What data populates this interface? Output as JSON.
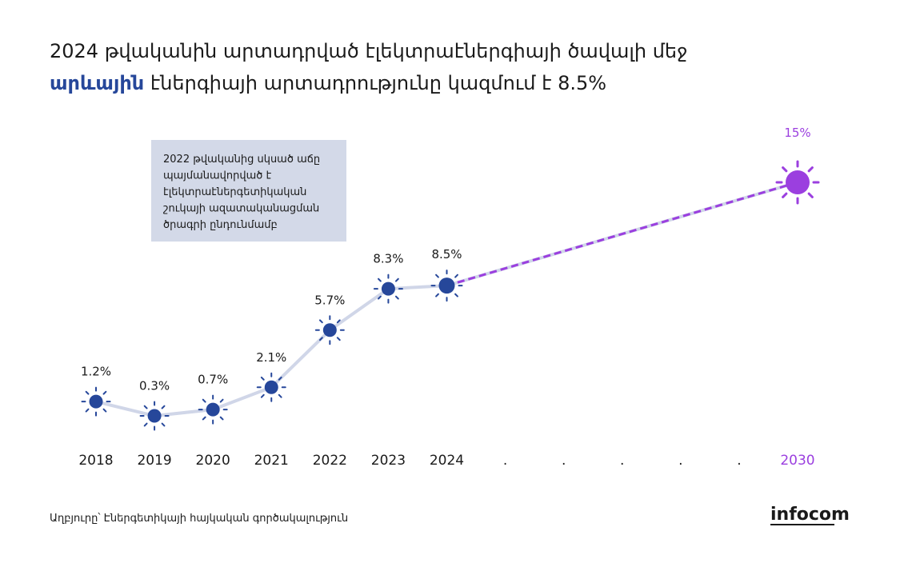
{
  "chart_data": {
    "type": "line",
    "title_parts": [
      "2024 թվականին արտադրված էլեկտրաէներգիայի ծավալի մեջ",
      "արևային",
      " էներգիայի արտադրությունը կազմում է 8.5%"
    ],
    "annotation": [
      "2022 թվականից սկսած աճը",
      "պայմանավորված է",
      "էլեկտրաէներգետիկական",
      "շուկայի ազատականացման",
      "ծրագրի ընդունմամբ"
    ],
    "categories": [
      "2018",
      "2019",
      "2020",
      "2021",
      "2022",
      "2023",
      "2024",
      ".",
      ".",
      ".",
      ".",
      ".",
      "2030"
    ],
    "values": [
      1.2,
      0.3,
      0.7,
      2.1,
      5.7,
      8.3,
      8.5,
      null,
      null,
      null,
      null,
      null,
      15
    ],
    "value_labels": [
      "1.2%",
      "0.3%",
      "0.7%",
      "2.1%",
      "5.7%",
      "8.3%",
      "8.5%",
      null,
      null,
      null,
      null,
      null,
      "15%"
    ],
    "point_colors": [
      "#26479a",
      "#26479a",
      "#26479a",
      "#26479a",
      "#26479a",
      "#26479a",
      "#26479a",
      null,
      null,
      null,
      null,
      null,
      "#9b3fdf"
    ],
    "line_color": "#d0d6e8",
    "ylim": [
      0,
      15
    ],
    "source": "Աղբյուրը՝ Էներգետիկայի հայկական գործակալություն",
    "logo": "infocom"
  }
}
